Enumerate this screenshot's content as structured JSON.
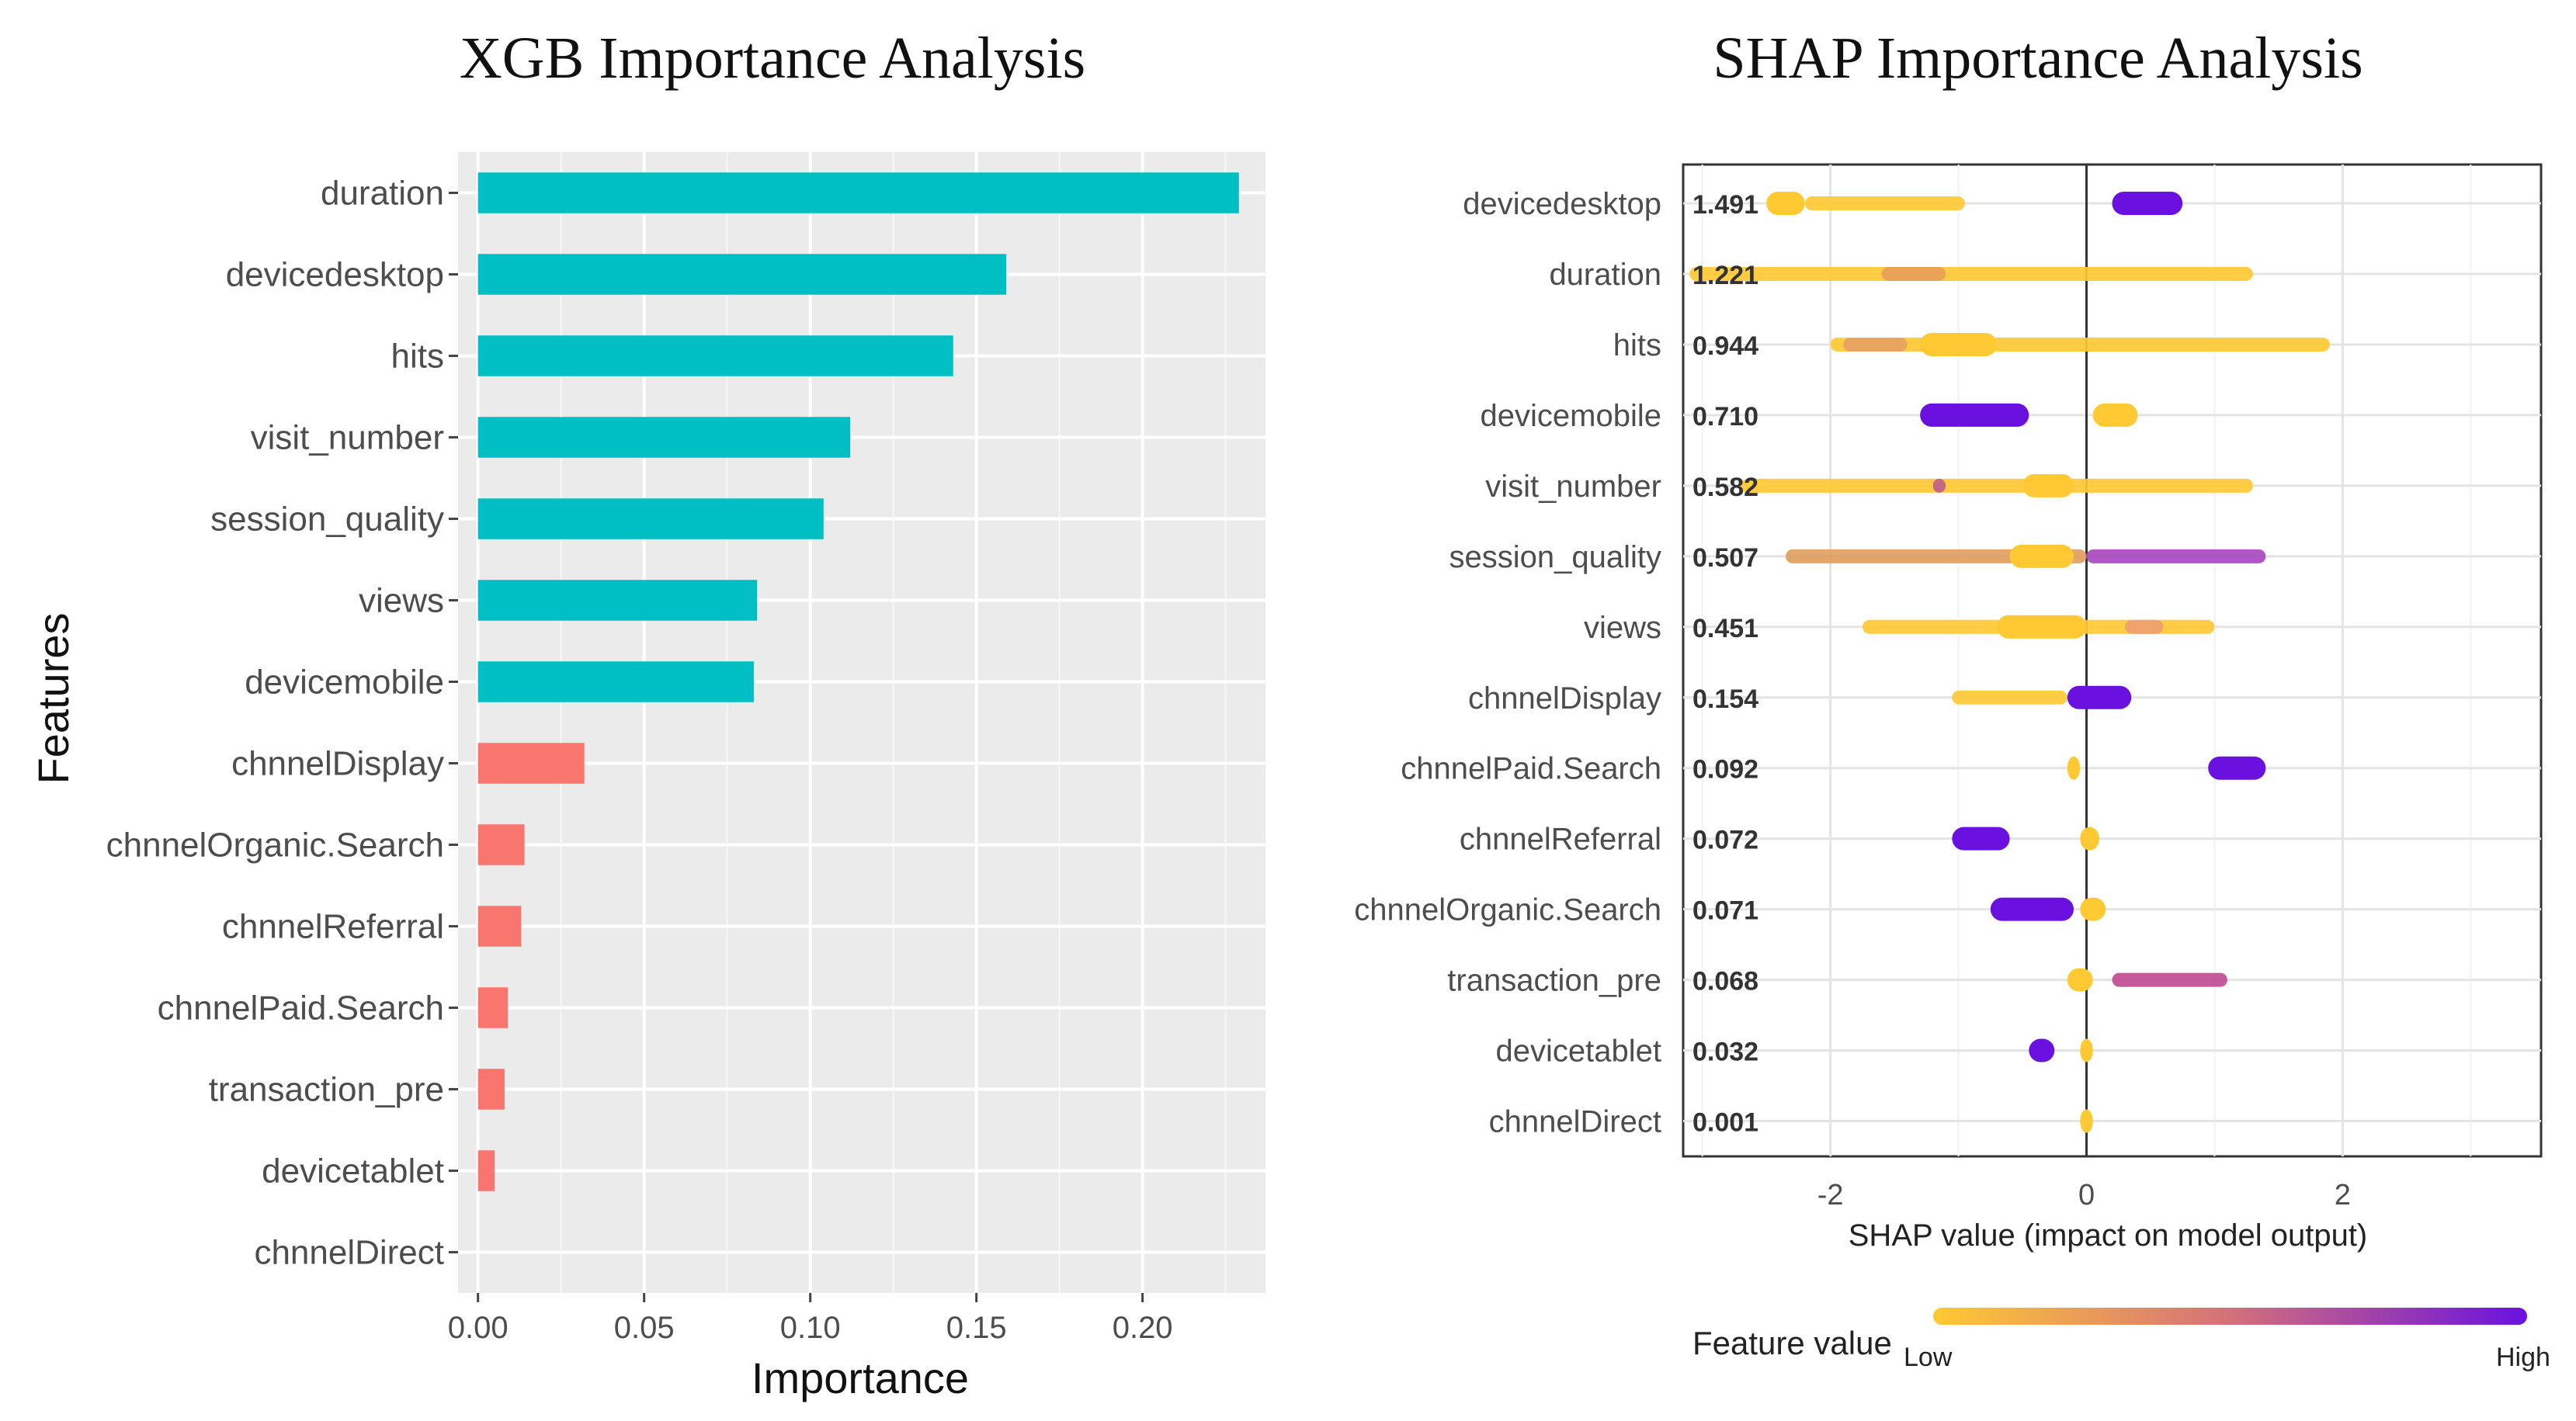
{
  "chart_data": [
    {
      "type": "bar",
      "orientation": "horizontal",
      "title": "XGB Importance Analysis",
      "xlabel": "Importance",
      "ylabel": "Features",
      "xlim": [
        -0.006,
        0.237
      ],
      "xticks": [
        0,
        0.05,
        0.1,
        0.15,
        0.2
      ],
      "xtick_labels": [
        "0.00",
        "0.05",
        "0.10",
        "0.15",
        "0.20"
      ],
      "grid": true,
      "categories": [
        "duration",
        "devicedesktop",
        "hits",
        "visit_number",
        "session_quality",
        "views",
        "devicemobile",
        "chnnelDisplay",
        "chnnelOrganic.Search",
        "chnnelReferral",
        "chnnelPaid.Search",
        "transaction_pre",
        "devicetablet",
        "chnnelDirect"
      ],
      "values": [
        0.229,
        0.159,
        0.143,
        0.112,
        0.104,
        0.084,
        0.083,
        0.032,
        0.014,
        0.013,
        0.009,
        0.008,
        0.005,
        0.0
      ],
      "groups": [
        "A",
        "A",
        "A",
        "A",
        "A",
        "A",
        "A",
        "B",
        "B",
        "B",
        "B",
        "B",
        "B",
        "B"
      ],
      "group_colors": {
        "A": "#00BFC4",
        "B": "#F8766D"
      }
    },
    {
      "type": "scatter",
      "subtype": "shap-beeswarm",
      "title": "SHAP Importance Analysis",
      "xlabel": "SHAP value (impact on model output)",
      "xlim": [
        -3.15,
        3.55
      ],
      "xticks": [
        -2,
        0,
        2
      ],
      "xtick_labels": [
        "-2",
        "0",
        "2"
      ],
      "grid": true,
      "legend": {
        "title": "Feature value",
        "low_label": "Low",
        "high_label": "High",
        "low_color": "#FFC933",
        "high_color": "#6A11E0",
        "position": "bottom"
      },
      "features": [
        {
          "name": "devicedesktop",
          "mean_abs": "1.491",
          "segments": [
            {
              "from": -2.5,
              "to": -2.2,
              "color": "#FFC933",
              "thick": true
            },
            {
              "from": -2.2,
              "to": -0.95,
              "color": "#FFC933",
              "thick": false
            },
            {
              "from": 0.2,
              "to": 0.75,
              "color": "#6A11E0",
              "thick": true
            }
          ]
        },
        {
          "name": "duration",
          "mean_abs": "1.221",
          "segments": [
            {
              "from": -3.1,
              "to": 1.3,
              "color": "#FFC933",
              "thick": false
            },
            {
              "from": -1.6,
              "to": -1.1,
              "color": "#E8A058",
              "thick": false
            }
          ]
        },
        {
          "name": "hits",
          "mean_abs": "0.944",
          "segments": [
            {
              "from": -2.0,
              "to": 1.9,
              "color": "#FFC933",
              "thick": false
            },
            {
              "from": -1.9,
              "to": -1.4,
              "color": "#E7A162",
              "thick": false
            },
            {
              "from": -1.3,
              "to": -0.7,
              "color": "#FFC933",
              "thick": true
            }
          ]
        },
        {
          "name": "devicemobile",
          "mean_abs": "0.710",
          "segments": [
            {
              "from": -1.3,
              "to": -0.45,
              "color": "#6A11E0",
              "thick": true
            },
            {
              "from": 0.05,
              "to": 0.4,
              "color": "#FFC933",
              "thick": true
            }
          ]
        },
        {
          "name": "visit_number",
          "mean_abs": "0.582",
          "segments": [
            {
              "from": -2.7,
              "to": 1.3,
              "color": "#FFC933",
              "thick": false
            },
            {
              "from": -1.2,
              "to": -1.1,
              "color": "#C0608A",
              "thick": false
            },
            {
              "from": -0.5,
              "to": -0.1,
              "color": "#FFC933",
              "thick": true
            }
          ]
        },
        {
          "name": "session_quality",
          "mean_abs": "0.507",
          "segments": [
            {
              "from": -2.35,
              "to": 0.0,
              "color": "#E0A060",
              "thick": false
            },
            {
              "from": -0.6,
              "to": -0.1,
              "color": "#FFC933",
              "thick": true
            },
            {
              "from": 0.0,
              "to": 1.4,
              "color": "#A84AC0",
              "thick": false
            }
          ]
        },
        {
          "name": "views",
          "mean_abs": "0.451",
          "segments": [
            {
              "from": -1.75,
              "to": 1.0,
              "color": "#FFC933",
              "thick": false
            },
            {
              "from": -0.7,
              "to": 0.0,
              "color": "#FFC933",
              "thick": true
            },
            {
              "from": 0.3,
              "to": 0.6,
              "color": "#F0A070",
              "thick": false
            }
          ]
        },
        {
          "name": "chnnelDisplay",
          "mean_abs": "0.154",
          "segments": [
            {
              "from": -1.05,
              "to": -0.15,
              "color": "#FFC933",
              "thick": false
            },
            {
              "from": -0.15,
              "to": 0.35,
              "color": "#6A11E0",
              "thick": true
            }
          ]
        },
        {
          "name": "chnnelPaid.Search",
          "mean_abs": "0.092",
          "segments": [
            {
              "from": -0.15,
              "to": -0.05,
              "color": "#FFC933",
              "thick": true
            },
            {
              "from": 0.95,
              "to": 1.4,
              "color": "#6A11E0",
              "thick": true
            }
          ]
        },
        {
          "name": "chnnelReferral",
          "mean_abs": "0.072",
          "segments": [
            {
              "from": -1.05,
              "to": -0.6,
              "color": "#6A11E0",
              "thick": true
            },
            {
              "from": -0.05,
              "to": 0.1,
              "color": "#FFC933",
              "thick": true
            }
          ]
        },
        {
          "name": "chnnelOrganic.Search",
          "mean_abs": "0.071",
          "segments": [
            {
              "from": -0.75,
              "to": -0.1,
              "color": "#6A11E0",
              "thick": true
            },
            {
              "from": -0.05,
              "to": 0.15,
              "color": "#FFC933",
              "thick": true
            }
          ]
        },
        {
          "name": "transaction_pre",
          "mean_abs": "0.068",
          "segments": [
            {
              "from": -0.15,
              "to": 0.05,
              "color": "#FFC933",
              "thick": true
            },
            {
              "from": 0.2,
              "to": 1.1,
              "color": "#C04C94",
              "thick": false
            }
          ]
        },
        {
          "name": "devicetablet",
          "mean_abs": "0.032",
          "segments": [
            {
              "from": -0.45,
              "to": -0.25,
              "color": "#6A11E0",
              "thick": true
            },
            {
              "from": -0.05,
              "to": 0.05,
              "color": "#FFC933",
              "thick": true
            }
          ]
        },
        {
          "name": "chnnelDirect",
          "mean_abs": "0.001",
          "segments": [
            {
              "from": -0.05,
              "to": 0.05,
              "color": "#FFC933",
              "thick": true
            }
          ]
        }
      ]
    }
  ]
}
